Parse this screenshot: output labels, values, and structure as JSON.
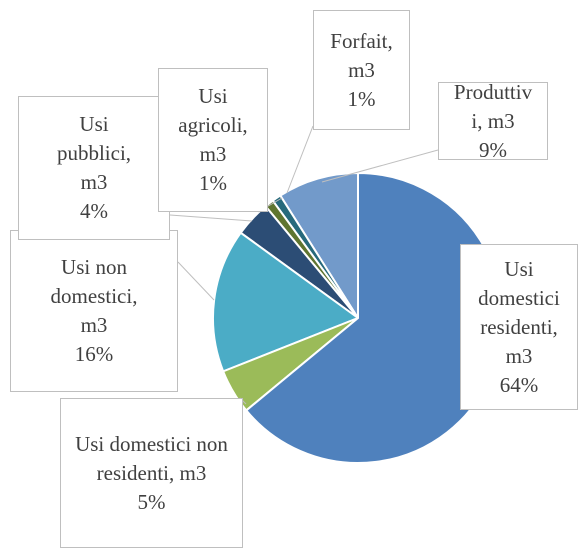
{
  "chart_data": {
    "type": "pie",
    "categories": [
      "Usi domestici residenti, m3",
      "Usi domestici non residenti, m3",
      "Usi non domestici, m3",
      "Usi pubblici, m3",
      "Usi agricoli, m3",
      "Forfait, m3",
      "Produttivi, m3"
    ],
    "values": [
      64,
      5,
      16,
      4,
      1,
      1,
      9
    ],
    "value_labels": [
      "64%",
      "5%",
      "16%",
      "4%",
      "1%",
      "1%",
      "9%"
    ],
    "colors": [
      "#4f81bd",
      "#9bbb59",
      "#4bacc6",
      "#2c4d75",
      "#5f7530",
      "#276a7c",
      "#729aca"
    ]
  }
}
